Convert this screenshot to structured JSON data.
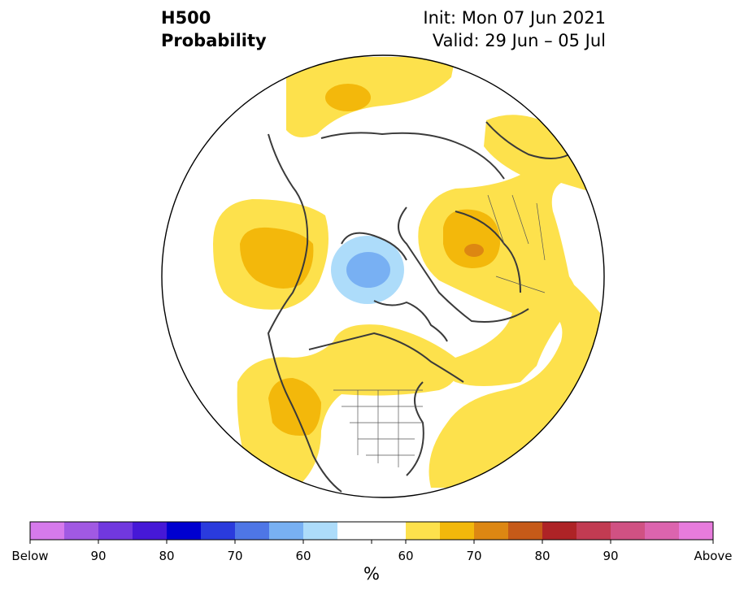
{
  "header": {
    "variable": "H500",
    "product": "Probability",
    "init": "Init: Mon 07 Jun 2021",
    "valid": "Valid: 29 Jun – 05 Jul"
  },
  "colorbar": {
    "unit": "%",
    "colors": [
      "#d67aec",
      "#a159e3",
      "#7138df",
      "#4618d7",
      "#0000d0",
      "#2a3bdd",
      "#4e76e6",
      "#78b0f3",
      "#addcfa",
      "#ffffff",
      "#ffffff",
      "#fde14c",
      "#f3b80b",
      "#dd8712",
      "#c65a18",
      "#ae2326",
      "#c23b52",
      "#d05183",
      "#dc64ae",
      "#e77bdc"
    ],
    "tick_labels": [
      "Below",
      "90",
      "80",
      "70",
      "60",
      "60",
      "70",
      "80",
      "90",
      "Above"
    ]
  },
  "map": {
    "projection": "north polar stereographic",
    "anomalies": [
      {
        "name": "near-normal-above-greenland-arctic",
        "category": "above",
        "level": "50-60"
      },
      {
        "name": "above-north-atlantic",
        "category": "above",
        "level": "60-70"
      },
      {
        "name": "above-north-pacific",
        "category": "above",
        "level": "60-70"
      },
      {
        "name": "above-eurasia",
        "category": "above",
        "level": "60-70"
      },
      {
        "name": "below-arctic",
        "category": "below",
        "level": "60-70"
      },
      {
        "name": "above-canada",
        "category": "above",
        "level": "50-60"
      },
      {
        "name": "above-western-us",
        "category": "above",
        "level": "60-70"
      }
    ],
    "colors": {
      "above_50_60": "#fde14c",
      "above_60_70": "#f3b80b",
      "above_70_80": "#dd8712",
      "below_50_60": "#addcfa",
      "below_60_70": "#78b0f3",
      "coast": "#3a3a3a"
    }
  }
}
